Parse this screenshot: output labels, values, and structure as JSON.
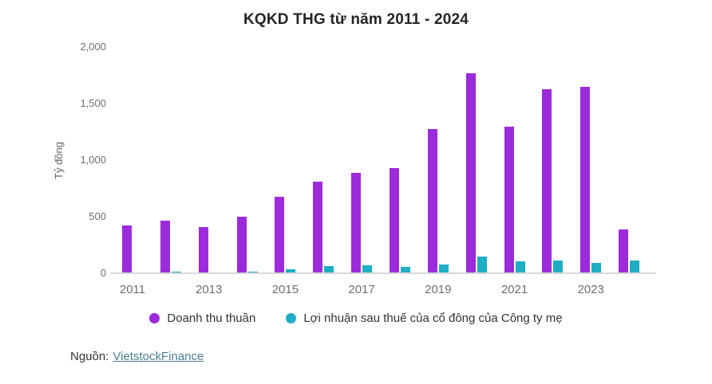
{
  "header": {
    "title": "KQKD THG từ năm 2011 - 2024"
  },
  "chart_data": {
    "type": "bar",
    "title": "KQKD THG từ năm 2011 - 2024",
    "xlabel": "",
    "ylabel": "Tỷ đồng",
    "unit": "Tỷ đồng",
    "ylim": [
      0,
      2000
    ],
    "yticks": [
      0,
      500,
      1000,
      1500,
      2000
    ],
    "ytick_labels": [
      "0",
      "500",
      "1,000",
      "1,500",
      "2,000"
    ],
    "categories": [
      2011,
      2012,
      2013,
      2014,
      2015,
      2016,
      2017,
      2018,
      2019,
      2020,
      2021,
      2022,
      2023,
      2024
    ],
    "xtick_labels": [
      "2011",
      "2013",
      "2015",
      "2017",
      "2019",
      "2021",
      "2023"
    ],
    "grid": false,
    "legend_position": "bottom",
    "axis_line_color": "#d8d8d8",
    "series": [
      {
        "name": "Doanh thu thuần",
        "color": "#9c2bdb",
        "values": [
          425,
          467,
          408,
          500,
          675,
          810,
          885,
          930,
          1278,
          1765,
          1295,
          1630,
          1650,
          390
        ]
      },
      {
        "name": "Lợi nhuận sau thuế của cổ đông của Công ty mẹ",
        "color": "#1faec4",
        "values": [
          8,
          12,
          3,
          11,
          37,
          65,
          72,
          55,
          80,
          145,
          106,
          113,
          95,
          113
        ]
      }
    ]
  },
  "footer": {
    "source_label": "Nguồn:",
    "source_link": "VietstockFinance"
  }
}
